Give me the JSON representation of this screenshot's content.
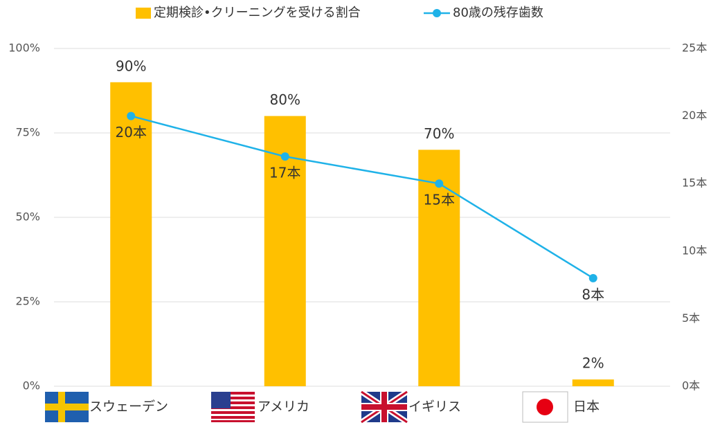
{
  "chart_data": {
    "type": "bar",
    "categories": [
      "スウェーデン",
      "アメリカ",
      "イギリス",
      "日本"
    ],
    "series": [
      {
        "name": "定期検診•クリーニングを受ける割合",
        "type": "bar",
        "color": "#FFC000",
        "values": [
          90,
          80,
          70,
          2
        ],
        "value_labels": [
          "90%",
          "80%",
          "70%",
          "2%"
        ]
      },
      {
        "name": "80歳の残存歯数",
        "type": "line",
        "axis": "y2",
        "color": "#1FB2E8",
        "values": [
          20,
          17,
          15,
          8
        ],
        "value_labels": [
          "20本",
          "17本",
          "15本",
          "8本"
        ]
      }
    ],
    "ylim": [
      0,
      100
    ],
    "yticks": [
      {
        "value": 0,
        "label": "0%"
      },
      {
        "value": 25,
        "label": "25%"
      },
      {
        "value": 50,
        "label": "50%"
      },
      {
        "value": 75,
        "label": "75%"
      },
      {
        "value": 100,
        "label": "100%"
      }
    ],
    "y2lim": [
      0,
      25
    ],
    "y2ticks": [
      {
        "value": 0,
        "label": "0本"
      },
      {
        "value": 5,
        "label": "5本"
      },
      {
        "value": 10,
        "label": "10本"
      },
      {
        "value": 15,
        "label": "15本"
      },
      {
        "value": 20,
        "label": "20本"
      },
      {
        "value": 25,
        "label": "25本"
      }
    ],
    "grid": true,
    "legend": "top"
  }
}
